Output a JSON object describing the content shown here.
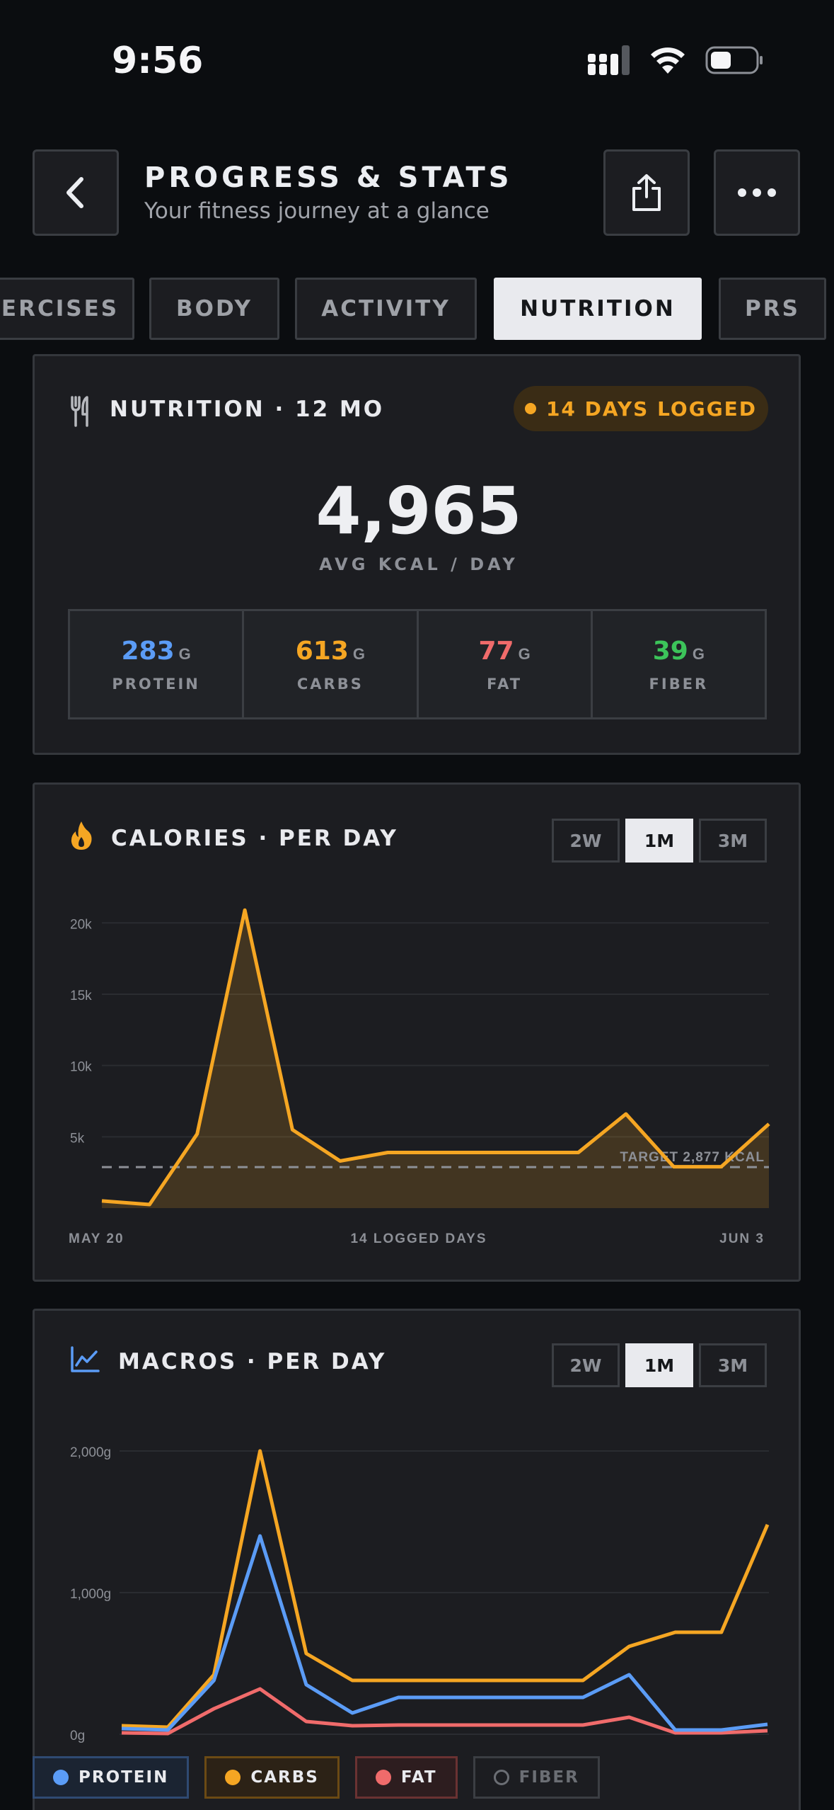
{
  "status": {
    "time": "9:56"
  },
  "header": {
    "title": "PROGRESS & STATS",
    "subtitle": "Your fitness journey at a glance"
  },
  "tabs": [
    {
      "label": "ERCISES"
    },
    {
      "label": "BODY"
    },
    {
      "label": "ACTIVITY"
    },
    {
      "label": "NUTRITION",
      "active": true
    },
    {
      "label": "PRS"
    }
  ],
  "nutrition": {
    "title": "NUTRITION · 12 MO",
    "badge": "14 DAYS LOGGED",
    "avg_kcal": "4,965",
    "avg_label": "AVG KCAL / DAY",
    "macros": [
      {
        "value": "283",
        "unit": "G",
        "name": "PROTEIN",
        "color": "#5b9cf6"
      },
      {
        "value": "613",
        "unit": "G",
        "name": "CARBS",
        "color": "#f5a623"
      },
      {
        "value": "77",
        "unit": "G",
        "name": "FAT",
        "color": "#f06b6b"
      },
      {
        "value": "39",
        "unit": "G",
        "name": "FIBER",
        "color": "#3cc45a"
      }
    ]
  },
  "calories": {
    "title": "CALORIES · PER DAY",
    "ranges": [
      "2W",
      "1M",
      "3M"
    ],
    "active_range": "1M",
    "x_start": "MAY 20",
    "x_center": "14 LOGGED DAYS",
    "x_end": "JUN 3",
    "target_label": "TARGET 2,877 KCAL"
  },
  "macros_chart": {
    "title": "MACROS · PER DAY",
    "ranges": [
      "2W",
      "1M",
      "3M"
    ],
    "active_range": "1M",
    "legend": [
      {
        "name": "PROTEIN",
        "color": "#5b9cf6",
        "active": true
      },
      {
        "name": "CARBS",
        "color": "#f5a623",
        "active": true
      },
      {
        "name": "FAT",
        "color": "#f06b6b",
        "active": true
      },
      {
        "name": "FIBER",
        "color": "#6b6e74",
        "active": false
      }
    ]
  },
  "chart_data": [
    {
      "type": "area",
      "title": "CALORIES · PER DAY",
      "x_labels": [
        "MAY 20",
        "14 LOGGED DAYS",
        "JUN 3"
      ],
      "y_ticks": [
        "20k",
        "15k",
        "10k",
        "5k"
      ],
      "ylim": [
        0,
        22000
      ],
      "target": 2877,
      "color": "#f5a623",
      "values": [
        500,
        250,
        5200,
        20900,
        5500,
        3300,
        3900,
        3900,
        3900,
        3900,
        3900,
        6600,
        2900,
        2900,
        5900
      ]
    },
    {
      "type": "line",
      "title": "MACROS · PER DAY",
      "y_ticks": [
        "2,000g",
        "1,000g",
        "0g"
      ],
      "ylim": [
        0,
        2000
      ],
      "series": [
        {
          "name": "PROTEIN",
          "color": "#5b9cf6",
          "values": [
            40,
            30,
            380,
            1400,
            350,
            150,
            260,
            260,
            260,
            260,
            260,
            420,
            30,
            30,
            70
          ]
        },
        {
          "name": "CARBS",
          "color": "#f5a623",
          "values": [
            60,
            50,
            420,
            2000,
            570,
            380,
            380,
            380,
            380,
            380,
            380,
            620,
            720,
            720,
            1480
          ]
        },
        {
          "name": "FAT",
          "color": "#f06b6b",
          "values": [
            10,
            5,
            180,
            320,
            90,
            60,
            65,
            65,
            65,
            65,
            65,
            120,
            10,
            10,
            25
          ]
        }
      ]
    }
  ]
}
